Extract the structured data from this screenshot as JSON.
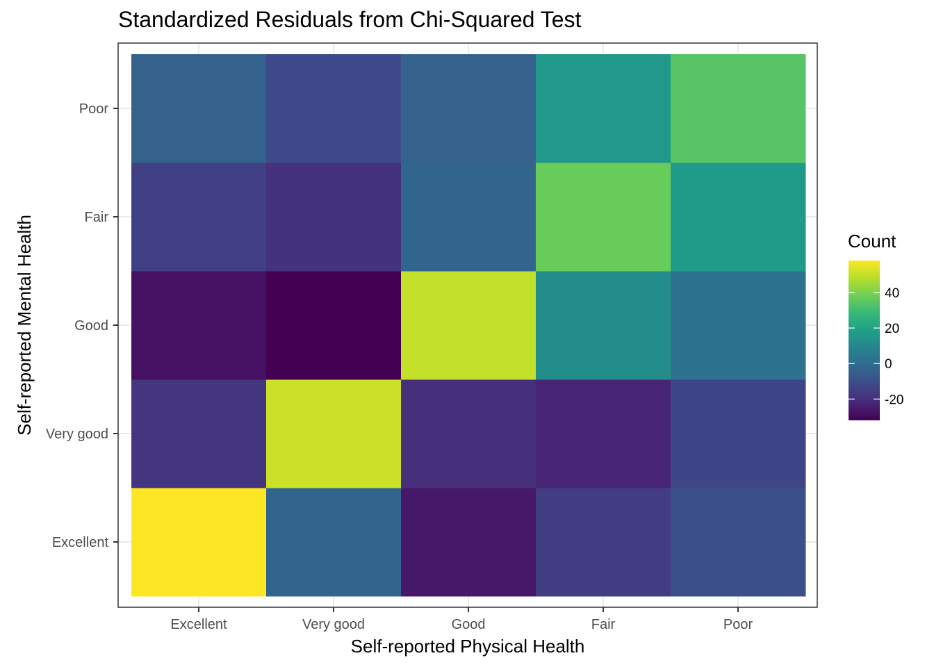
{
  "chart_data": {
    "type": "heatmap",
    "title": "Standardized Residuals from Chi-Squared Test",
    "xlabel": "Self-reported Physical Health",
    "ylabel": "Self-reported Mental Health",
    "x_categories": [
      "Excellent",
      "Very good",
      "Good",
      "Fair",
      "Poor"
    ],
    "y_categories": [
      "Excellent",
      "Very good",
      "Good",
      "Fair",
      "Poor"
    ],
    "values": [
      [
        58,
        -3,
        -26,
        -16,
        -10
      ],
      [
        -18,
        51,
        -20,
        -23,
        -13
      ],
      [
        -28,
        -32,
        50,
        12,
        2
      ],
      [
        -15,
        -19,
        -3,
        37,
        17
      ],
      [
        -4,
        -12,
        -4,
        16,
        34
      ]
    ],
    "legend": {
      "title": "Count",
      "position": "right",
      "ticks": [
        -20,
        0,
        20,
        40
      ],
      "range": [
        -32,
        58
      ]
    },
    "colorscale": "viridis",
    "grid": true
  }
}
